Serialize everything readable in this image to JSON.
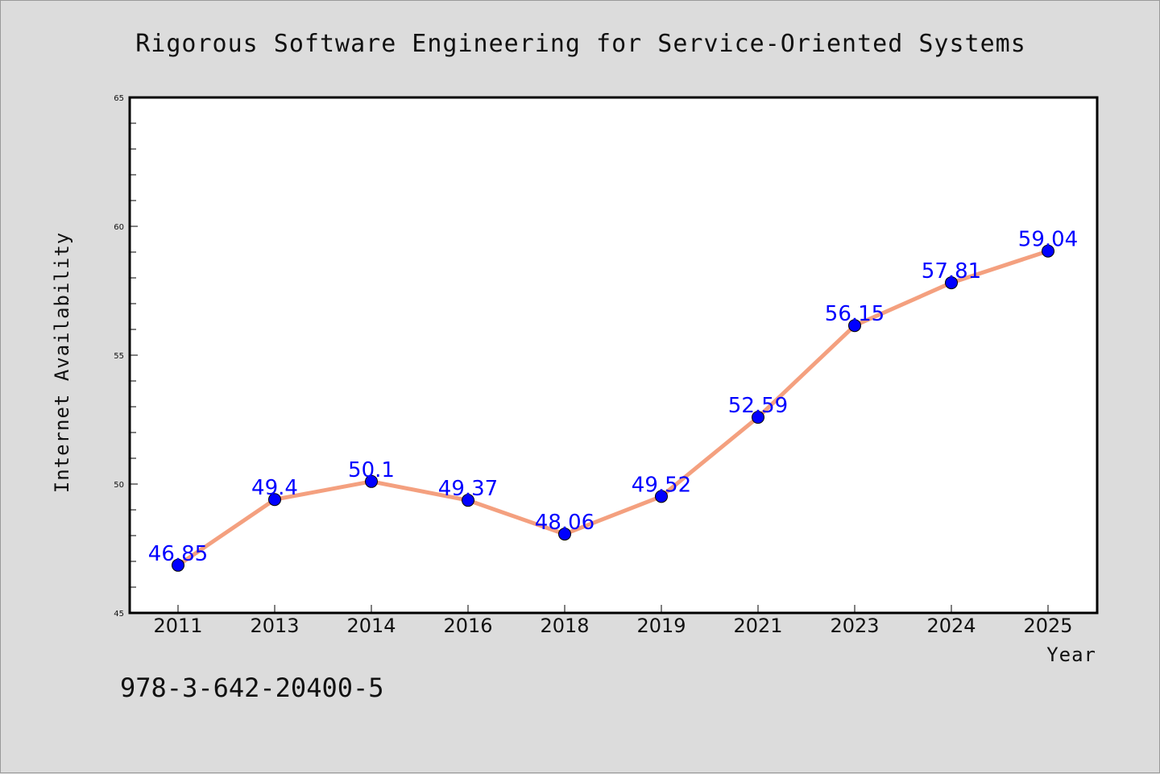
{
  "chart_data": {
    "type": "line",
    "title": "Rigorous Software Engineering for Service-Oriented Systems",
    "xlabel": "Year",
    "ylabel": "Internet Availability",
    "categories": [
      "2011",
      "2013",
      "2014",
      "2016",
      "2018",
      "2019",
      "2021",
      "2023",
      "2024",
      "2025"
    ],
    "series": [
      {
        "values": [
          46.85,
          49.4,
          50.1,
          49.37,
          48.06,
          49.52,
          52.59,
          56.15,
          57.81,
          59.04
        ],
        "data_labels": [
          "46.85",
          "49.4",
          "50.1",
          "49.37",
          "48.06",
          "49.52",
          "52.59",
          "56.15",
          "57.81",
          "59.04"
        ]
      }
    ],
    "ylim": [
      45,
      65
    ],
    "yticks": [
      "45",
      "50",
      "55",
      "60",
      "65"
    ],
    "grid": false,
    "legend": "none",
    "colors": {
      "line": "#f4a07f",
      "marker": "#0000ff",
      "data_label": "#0000ff",
      "plot_background": "#ffffff",
      "page_background": "#dcdcdc"
    }
  },
  "footer": {
    "isbn": "978-3-642-20400-5"
  }
}
